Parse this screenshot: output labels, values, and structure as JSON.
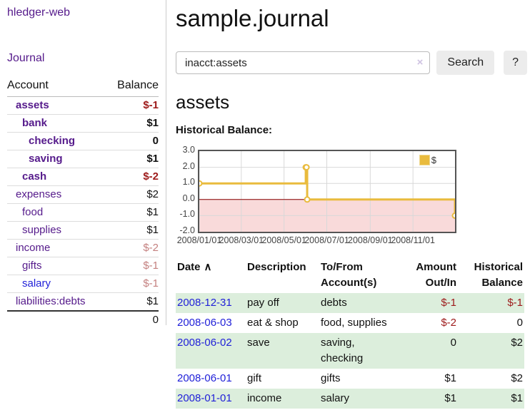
{
  "app": {
    "title": "hledger-web"
  },
  "sidebar": {
    "journal_label": "Journal",
    "accounts_header": {
      "account": "Account",
      "balance": "Balance"
    },
    "accounts": [
      {
        "name": "assets",
        "balance": "$-1"
      },
      {
        "name": "bank",
        "balance": "$1"
      },
      {
        "name": "checking",
        "balance": "0"
      },
      {
        "name": "saving",
        "balance": "$1"
      },
      {
        "name": "cash",
        "balance": "$-2"
      },
      {
        "name": "expenses",
        "balance": "$2"
      },
      {
        "name": "food",
        "balance": "$1"
      },
      {
        "name": "supplies",
        "balance": "$1"
      },
      {
        "name": "income",
        "balance": "$-2"
      },
      {
        "name": "gifts",
        "balance": "$-1"
      },
      {
        "name": "salary",
        "balance": "$-1"
      },
      {
        "name": "liabilities:debts",
        "balance": "$1"
      }
    ],
    "total": "0"
  },
  "main": {
    "title": "sample.journal",
    "search": {
      "value": "inacct:assets",
      "clear_icon": "×",
      "search_button": "Search",
      "help_button": "?"
    },
    "account_heading": "assets"
  },
  "chart_data": {
    "type": "line",
    "title": "Historical Balance:",
    "step": true,
    "xlim": [
      "2008-01-01",
      "2008-12-31"
    ],
    "ylim": [
      -2,
      3
    ],
    "x_ticks": [
      "2008/01/01",
      "2008/03/01",
      "2008/05/01",
      "2008/07/01",
      "2008/09/01",
      "2008/11/01"
    ],
    "y_ticks": [
      "3.0",
      "2.0",
      "1.0",
      "0.0",
      "-1.0",
      "-2.0"
    ],
    "series": [
      {
        "name": "$",
        "color": "#e9bb3d",
        "points": [
          [
            "2008-01-01",
            1
          ],
          [
            "2008-06-01",
            2
          ],
          [
            "2008-06-02",
            2
          ],
          [
            "2008-06-03",
            0
          ],
          [
            "2008-12-31",
            -1
          ]
        ]
      }
    ],
    "legend": {
      "label": "$",
      "position": "top-right"
    },
    "grid": true,
    "negative_region_color": "#f9dada",
    "zero_line_color": "#8b0000"
  },
  "register": {
    "headers": {
      "date": "Date",
      "sort_icon": "∧",
      "description": "Description",
      "account_line1": "To/From",
      "account_line2": "Account(s)",
      "amount_line1": "Amount",
      "amount_line2": "Out/In",
      "balance_line1": "Historical",
      "balance_line2": "Balance"
    },
    "rows": [
      {
        "date": "2008-12-31",
        "description": "pay off",
        "accounts": "debts",
        "amount": "$-1",
        "balance": "$-1"
      },
      {
        "date": "2008-06-03",
        "description": "eat & shop",
        "accounts": "food, supplies",
        "amount": "$-2",
        "balance": "0"
      },
      {
        "date": "2008-06-02",
        "description": "save",
        "accounts": "saving, checking",
        "amount": "0",
        "balance": "$2"
      },
      {
        "date": "2008-06-01",
        "description": "gift",
        "accounts": "gifts",
        "amount": "$1",
        "balance": "$2"
      },
      {
        "date": "2008-01-01",
        "description": "income",
        "accounts": "salary",
        "amount": "$1",
        "balance": "$1"
      }
    ]
  }
}
